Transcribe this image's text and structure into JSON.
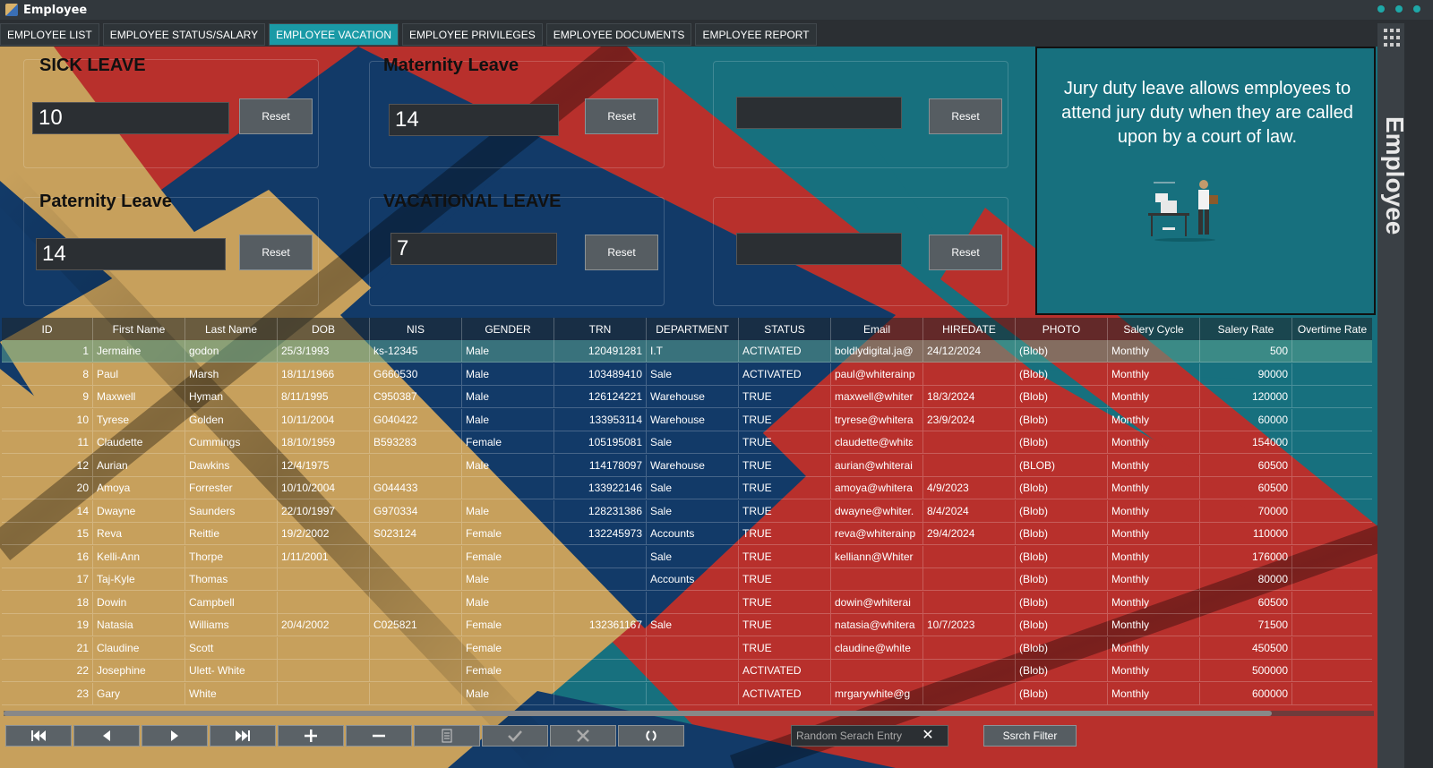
{
  "window": {
    "title": "Employee"
  },
  "tabs": [
    "EMPLOYEE LIST",
    "EMPLOYEE STATUS/SALARY",
    "EMPLOYEE VACATION",
    "EMPLOYEE PRIVILEGES",
    "EMPLOYEE DOCUMENTS",
    "EMPLOYEE REPORT"
  ],
  "active_tab": "EMPLOYEE VACATION",
  "leaves": {
    "sick": {
      "title": "SICK LEAVE",
      "value": "10",
      "reset": "Reset"
    },
    "maternity": {
      "title": "Maternity Leave",
      "value": "14",
      "reset": "Reset"
    },
    "blank_top": {
      "title": "",
      "value": "",
      "reset": "Reset"
    },
    "paternity": {
      "title": "Paternity Leave",
      "value": "14",
      "reset": "Reset"
    },
    "vacational": {
      "title": "VACATIONAL LEAVE",
      "value": "7",
      "reset": "Reset"
    },
    "blank_bottom": {
      "title": "",
      "value": "",
      "reset": "Reset"
    }
  },
  "info": {
    "text": "Jury duty leave allows employees to attend jury duty when they are called upon by a court of law."
  },
  "sidebar": {
    "vertical_title": "Employee"
  },
  "table": {
    "columns": [
      "ID",
      "First Name",
      "Last Name",
      "DOB",
      "NIS",
      "GENDER",
      "TRN",
      "DEPARTMENT",
      "STATUS",
      "Email",
      "HIREDATE",
      "PHOTO",
      "Salery Cycle",
      "Salery Rate",
      "Overtime Rate"
    ],
    "rows": [
      [
        "1",
        "Jermaine",
        "godon",
        "25/3/1993",
        "ks-12345",
        "Male",
        "120491281",
        "I.T",
        "ACTIVATED",
        "boldlydigital.ja@",
        "24/12/2024",
        "(Blob)",
        "Monthly",
        "500",
        ""
      ],
      [
        "8",
        "Paul",
        "Marsh",
        "18/11/1966",
        "G660530",
        "Male",
        "103489410",
        "Sale",
        "ACTIVATED",
        "paul@whiterainp",
        "",
        "(Blob)",
        "Monthly",
        "90000",
        ""
      ],
      [
        "9",
        "Maxwell",
        "Hyman",
        "8/11/1995",
        "C950387",
        "Male",
        "126124221",
        "Warehouse",
        "TRUE",
        "maxwell@whiter",
        "18/3/2024",
        "(Blob)",
        "Monthly",
        "120000",
        ""
      ],
      [
        "10",
        "Tyrese",
        "Golden",
        "10/11/2004",
        "G040422",
        "Male",
        "133953114",
        "Warehouse",
        "TRUE",
        "tryrese@whitera",
        "23/9/2024",
        "(Blob)",
        "Monthly",
        "60000",
        ""
      ],
      [
        "11",
        "Claudette",
        "Cummings",
        "18/10/1959",
        "B593283",
        "Female",
        "105195081",
        "Sale",
        "TRUE",
        "claudette@whitε",
        "",
        "(Blob)",
        "Monthly",
        "154000",
        ""
      ],
      [
        "12",
        "Aurian",
        "Dawkins",
        "12/4/1975",
        "",
        "Male",
        "114178097",
        "Warehouse",
        "TRUE",
        "aurian@whiterai",
        "",
        "(BLOB)",
        "Monthly",
        "60500",
        ""
      ],
      [
        "20",
        "Amoya",
        "Forrester",
        "10/10/2004",
        "G044433",
        "",
        "133922146",
        "Sale",
        "TRUE",
        "amoya@whitera",
        "4/9/2023",
        "(Blob)",
        "Monthly",
        "60500",
        ""
      ],
      [
        "14",
        "Dwayne",
        "Saunders",
        "22/10/1997",
        "G970334",
        "Male",
        "128231386",
        "Sale",
        "TRUE",
        "dwayne@whiter.",
        "8/4/2024",
        "(Blob)",
        "Monthly",
        "70000",
        ""
      ],
      [
        "15",
        "Reva",
        "Reittie",
        "19/2/2002",
        "S023124",
        "Female",
        "132245973",
        "Accounts",
        "TRUE",
        "reva@whiterainp",
        "29/4/2024",
        "(Blob)",
        "Monthly",
        "110000",
        ""
      ],
      [
        "16",
        "Kelli-Ann",
        "Thorpe",
        "1/11/2001",
        "",
        "Female",
        "",
        "Sale",
        "TRUE",
        "kelliann@Whiter",
        "",
        "(Blob)",
        "Monthly",
        "176000",
        ""
      ],
      [
        "17",
        "Taj-Kyle",
        "Thomas",
        "",
        "",
        "Male",
        "",
        "Accounts",
        "TRUE",
        "",
        "",
        "(Blob)",
        "Monthly",
        "80000",
        ""
      ],
      [
        "18",
        "Dowin",
        "Campbell",
        "",
        "",
        "Male",
        "",
        "",
        "TRUE",
        "dowin@whiterai",
        "",
        "(Blob)",
        "Monthly",
        "60500",
        ""
      ],
      [
        "19",
        "Natasia",
        "Williams",
        "20/4/2002",
        "C025821",
        "Female",
        "132361167",
        "Sale",
        "TRUE",
        "natasia@whitera",
        "10/7/2023",
        "(Blob)",
        "Monthly",
        "71500",
        ""
      ],
      [
        "21",
        "Claudine",
        "Scott",
        "",
        "",
        "Female",
        "",
        "",
        "TRUE",
        "claudine@white",
        "",
        "(Blob)",
        "Monthly",
        "450500",
        ""
      ],
      [
        "22",
        "Josephine",
        "Ulett- White",
        "",
        "",
        "Female",
        "",
        "",
        "ACTIVATED",
        "",
        "",
        "(Blob)",
        "Monthly",
        "500000",
        ""
      ],
      [
        "23",
        "Gary",
        "White",
        "",
        "",
        "Male",
        "",
        "",
        "ACTIVATED",
        "mrgarywhite@g",
        "",
        "(Blob)",
        "Monthly",
        "600000",
        ""
      ]
    ]
  },
  "navigation": {
    "buttons": [
      "first-record-icon",
      "previous-record-icon",
      "next-record-icon",
      "last-record-icon",
      "add-icon",
      "remove-icon",
      "edit-icon",
      "confirm-icon",
      "cancel-icon",
      "refresh-icon"
    ]
  },
  "search": {
    "placeholder": "Random Serach Entry",
    "clear": "✕",
    "filter_label": "Ssrch Filter"
  },
  "colors": {
    "red": "#b8302c",
    "teal": "#17707e",
    "navy": "#123a68",
    "tan": "#c7a05c",
    "accent": "#1a9aa6"
  }
}
